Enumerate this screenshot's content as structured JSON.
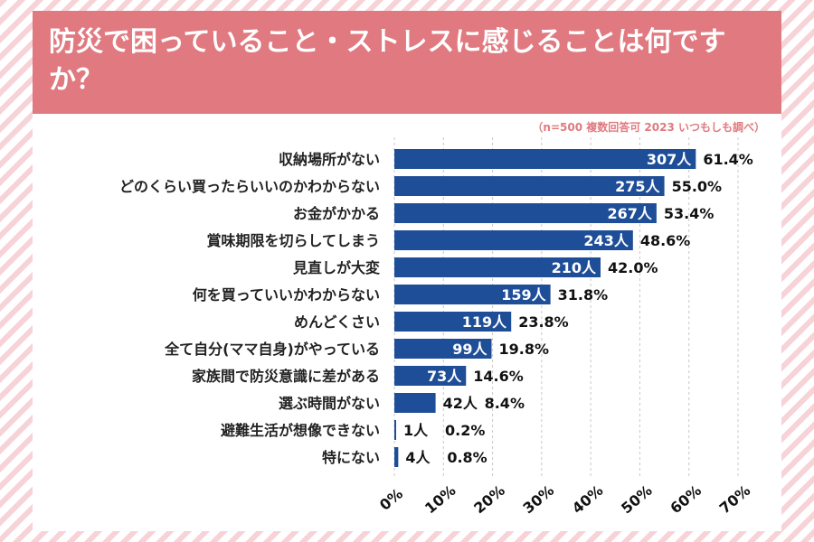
{
  "title": "防災で困っていること・ストレスに感じることは何ですか？",
  "note": "（n=500 複数回答可 2023 いつもしも調べ）",
  "colors": {
    "bar": "#1f4e98",
    "header": "#e07a80",
    "stripe": "#f7d3d8"
  },
  "chart_data": {
    "type": "bar",
    "orientation": "horizontal",
    "title": "防災で困っていること・ストレスに感じることは何ですか？",
    "xlim": [
      0,
      70
    ],
    "xticks": [
      "0%",
      "10%",
      "20%",
      "30%",
      "40%",
      "50%",
      "60%",
      "70%"
    ],
    "categories": [
      "収納場所がない",
      "どのくらい買ったらいいのかわからない",
      "お金がかかる",
      "賞味期限を切らしてしまう",
      "見直しが大変",
      "何を買っていいかわからない",
      "めんどくさい",
      "全て自分(ママ自身)がやっている",
      "家族間で防災意識に差がある",
      "選ぶ時間がない",
      "避難生活が想像できない",
      "特にない"
    ],
    "values": [
      61.4,
      55.0,
      53.4,
      48.6,
      42.0,
      31.8,
      23.8,
      19.8,
      14.6,
      8.4,
      0.2,
      0.8
    ],
    "counts": [
      "307人",
      "275人",
      "267人",
      "243人",
      "210人",
      "159人",
      "119人",
      "99人",
      "73人",
      "42人",
      "1人",
      "4人"
    ],
    "percent_labels": [
      "61.4%",
      "55.0%",
      "53.4%",
      "48.6%",
      "42.0%",
      "31.8%",
      "23.8%",
      "19.8%",
      "14.6%",
      "8.4%",
      "0.2%",
      "0.8%"
    ]
  }
}
